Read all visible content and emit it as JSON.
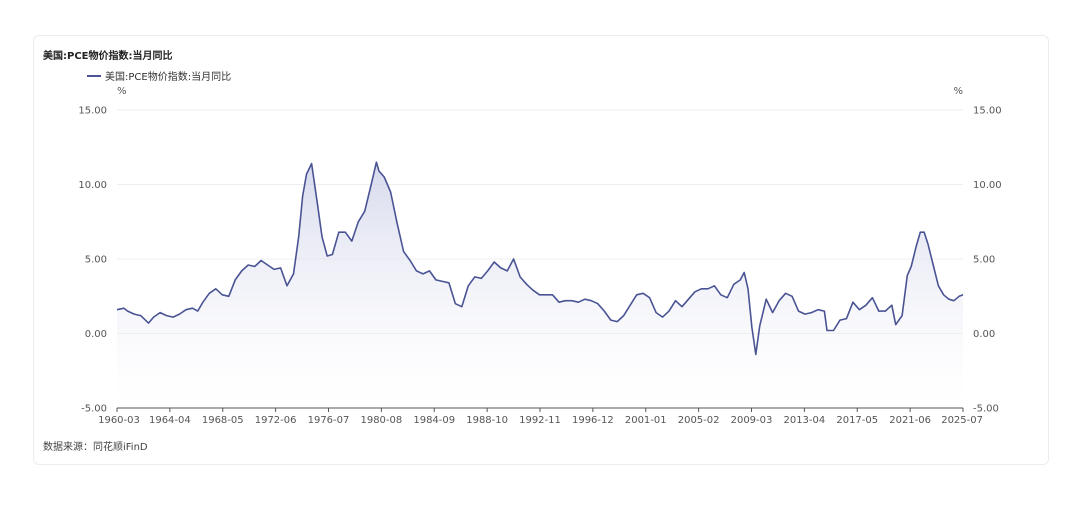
{
  "title": "美国:PCE物价指数:当月同比",
  "source": "数据来源：同花顺iFinD",
  "colors": {
    "line": "#4a5494",
    "fill_top": "#c9cde6",
    "grid": "#efefef"
  },
  "chart_data": {
    "type": "area",
    "title": "美国:PCE物价指数:当月同比",
    "legend": "top-left",
    "y_unit_left": "%",
    "y_unit_right": "%",
    "ylim": [
      -5,
      15
    ],
    "y_ticks": [
      "-5.00",
      "0.00",
      "5.00",
      "10.00",
      "15.00"
    ],
    "x_tick_labels": [
      "1960-03",
      "1964-04",
      "1968-05",
      "1972-06",
      "1976-07",
      "1980-08",
      "1984-09",
      "1988-10",
      "1992-11",
      "1996-12",
      "2001-01",
      "2005-02",
      "2009-03",
      "2013-04",
      "2017-05",
      "2021-06",
      "2025-07"
    ],
    "grid": true,
    "series": [
      {
        "name": "美国:PCE物价指数:当月同比",
        "x": [
          1960.17,
          1960.7,
          1961.0,
          1961.5,
          1962.0,
          1962.6,
          1963.0,
          1963.5,
          1964.0,
          1964.5,
          1965.0,
          1965.5,
          1966.0,
          1966.4,
          1966.8,
          1967.3,
          1967.8,
          1968.3,
          1968.8,
          1969.3,
          1969.8,
          1970.3,
          1970.8,
          1971.3,
          1971.8,
          1972.3,
          1972.8,
          1973.3,
          1973.8,
          1974.2,
          1974.5,
          1974.8,
          1975.2,
          1975.6,
          1976.0,
          1976.4,
          1976.8,
          1977.3,
          1977.8,
          1978.3,
          1978.8,
          1979.3,
          1979.8,
          1980.2,
          1980.4,
          1980.8,
          1981.3,
          1981.8,
          1982.3,
          1982.8,
          1983.3,
          1983.8,
          1984.3,
          1984.8,
          1985.3,
          1985.8,
          1986.3,
          1986.8,
          1987.3,
          1987.8,
          1988.3,
          1988.8,
          1989.3,
          1989.8,
          1990.3,
          1990.8,
          1991.3,
          1991.8,
          1992.3,
          1992.8,
          1993.3,
          1993.8,
          1994.3,
          1994.8,
          1995.3,
          1995.8,
          1996.3,
          1996.8,
          1997.3,
          1997.8,
          1998.3,
          1998.8,
          1999.3,
          1999.8,
          2000.3,
          2000.8,
          2001.3,
          2001.8,
          2002.3,
          2002.8,
          2003.3,
          2003.8,
          2004.3,
          2004.8,
          2005.3,
          2005.8,
          2006.3,
          2006.8,
          2007.3,
          2007.8,
          2008.3,
          2008.6,
          2008.9,
          2009.2,
          2009.5,
          2009.8,
          2010.3,
          2010.8,
          2011.3,
          2011.8,
          2012.3,
          2012.8,
          2013.3,
          2013.8,
          2014.3,
          2014.8,
          2015.0,
          2015.5,
          2016.0,
          2016.5,
          2017.0,
          2017.5,
          2018.0,
          2018.5,
          2019.0,
          2019.5,
          2020.0,
          2020.3,
          2020.8,
          2021.2,
          2021.5,
          2021.9,
          2022.2,
          2022.5,
          2022.8,
          2023.2,
          2023.6,
          2024.0,
          2024.4,
          2024.8,
          2025.2,
          2025.5
        ],
        "values": [
          1.6,
          1.7,
          1.5,
          1.3,
          1.2,
          0.7,
          1.1,
          1.4,
          1.2,
          1.1,
          1.3,
          1.6,
          1.7,
          1.5,
          2.1,
          2.7,
          3.0,
          2.6,
          2.5,
          3.6,
          4.2,
          4.6,
          4.5,
          4.9,
          4.6,
          4.3,
          4.4,
          3.2,
          4.0,
          6.5,
          9.2,
          10.7,
          11.4,
          9.0,
          6.5,
          5.2,
          5.3,
          6.8,
          6.8,
          6.2,
          7.5,
          8.2,
          10.0,
          11.5,
          10.9,
          10.5,
          9.5,
          7.4,
          5.5,
          4.9,
          4.2,
          4.0,
          4.2,
          3.6,
          3.5,
          3.4,
          2.0,
          1.8,
          3.2,
          3.8,
          3.7,
          4.2,
          4.8,
          4.4,
          4.2,
          5.0,
          3.8,
          3.3,
          2.9,
          2.6,
          2.6,
          2.6,
          2.1,
          2.2,
          2.2,
          2.1,
          2.3,
          2.2,
          2.0,
          1.5,
          0.9,
          0.8,
          1.2,
          1.9,
          2.6,
          2.7,
          2.4,
          1.4,
          1.1,
          1.5,
          2.2,
          1.8,
          2.3,
          2.8,
          3.0,
          3.0,
          3.2,
          2.6,
          2.4,
          3.3,
          3.6,
          4.1,
          3.0,
          0.4,
          -1.4,
          0.5,
          2.3,
          1.4,
          2.2,
          2.7,
          2.5,
          1.5,
          1.3,
          1.4,
          1.6,
          1.5,
          0.2,
          0.2,
          0.9,
          1.0,
          2.1,
          1.6,
          1.9,
          2.4,
          1.5,
          1.5,
          1.9,
          0.6,
          1.2,
          3.9,
          4.5,
          5.9,
          6.8,
          6.8,
          6.0,
          4.6,
          3.2,
          2.6,
          2.3,
          2.2,
          2.5,
          2.6
        ]
      }
    ]
  }
}
